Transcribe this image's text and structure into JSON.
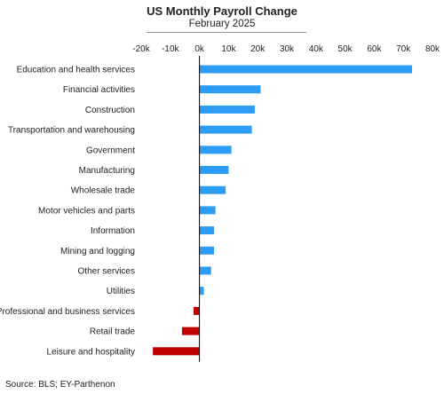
{
  "chart_data": {
    "type": "bar",
    "orientation": "horizontal",
    "title": "US Monthly Payroll Change",
    "subtitle": "February 2025",
    "source": "Source: BLS; EY-Parthenon",
    "xlim": [
      -20000,
      80000
    ],
    "x_ticks": [
      -20000,
      -10000,
      0,
      10000,
      20000,
      30000,
      40000,
      50000,
      60000,
      70000,
      80000
    ],
    "x_tick_labels": [
      "-20k",
      "-10k",
      "0k",
      "10k",
      "20k",
      "30k",
      "40k",
      "50k",
      "60k",
      "70k",
      "80k"
    ],
    "x_axis_position": "top",
    "grid": false,
    "categories": [
      "Education and health services",
      "Financial activities",
      "Construction",
      "Transportation and warehousing",
      "Government",
      "Manufacturing",
      "Wholesale trade",
      "Motor vehicles and parts",
      "Information",
      "Mining and logging",
      "Other services",
      "Utilities",
      "Professional and business services",
      "Retail trade",
      "Leisure and hospitality"
    ],
    "values": [
      73000,
      21000,
      19000,
      18000,
      11000,
      10000,
      9000,
      5500,
      5000,
      5000,
      4000,
      1500,
      -2000,
      -6000,
      -16000
    ],
    "colors": {
      "positive": "#2b9df4",
      "negative": "#c00000",
      "axis": "#000000"
    }
  }
}
